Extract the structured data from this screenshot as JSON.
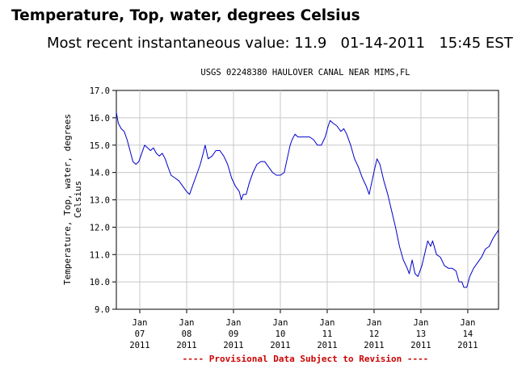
{
  "header": {
    "title": "Temperature, Top, water, degrees Celsius",
    "recent_label": "Most recent instantaneous value:",
    "recent_value": "11.9",
    "recent_date": "01-14-2011",
    "recent_time": "15:45 EST"
  },
  "chart_data": {
    "type": "line",
    "title": "USGS 02248380 HAULOVER CANAL NEAR MIMS,FL",
    "ylabel_lines": [
      "Temperature, Top, water, degrees",
      "Celsius"
    ],
    "footnote": "---- Provisional Data Subject to Revision ----",
    "ylim": [
      9.0,
      17.0
    ],
    "yticks": [
      "9.0",
      "10.0",
      "11.0",
      "12.0",
      "13.0",
      "14.0",
      "15.0",
      "16.0",
      "17.0"
    ],
    "xlim": [
      "2011-01-06T12:00",
      "2011-01-14T15:45"
    ],
    "xticks": [
      {
        "day": 7,
        "lines": [
          "Jan",
          "07",
          "2011"
        ]
      },
      {
        "day": 8,
        "lines": [
          "Jan",
          "08",
          "2011"
        ]
      },
      {
        "day": 9,
        "lines": [
          "Jan",
          "09",
          "2011"
        ]
      },
      {
        "day": 10,
        "lines": [
          "Jan",
          "10",
          "2011"
        ]
      },
      {
        "day": 11,
        "lines": [
          "Jan",
          "11",
          "2011"
        ]
      },
      {
        "day": 12,
        "lines": [
          "Jan",
          "12",
          "2011"
        ]
      },
      {
        "day": 13,
        "lines": [
          "Jan",
          "13",
          "2011"
        ]
      },
      {
        "day": 14,
        "lines": [
          "Jan",
          "14",
          "2011"
        ]
      }
    ],
    "grid": true,
    "colors": {
      "line": "#0000cc",
      "footnote": "#cc0000",
      "grid": "#c8c8c8"
    },
    "series": [
      {
        "points": [
          [
            "2011-01-06T12:00",
            16.2
          ],
          [
            "2011-01-06T13:00",
            15.8
          ],
          [
            "2011-01-06T14:30",
            15.6
          ],
          [
            "2011-01-06T16:00",
            15.5
          ],
          [
            "2011-01-06T17:30",
            15.2
          ],
          [
            "2011-01-06T19:00",
            14.8
          ],
          [
            "2011-01-06T20:30",
            14.4
          ],
          [
            "2011-01-06T22:00",
            14.3
          ],
          [
            "2011-01-06T23:30",
            14.4
          ],
          [
            "2011-01-07T01:00",
            14.7
          ],
          [
            "2011-01-07T02:30",
            15.0
          ],
          [
            "2011-01-07T04:00",
            14.9
          ],
          [
            "2011-01-07T05:30",
            14.8
          ],
          [
            "2011-01-07T07:00",
            14.9
          ],
          [
            "2011-01-07T08:30",
            14.7
          ],
          [
            "2011-01-07T10:00",
            14.6
          ],
          [
            "2011-01-07T11:30",
            14.7
          ],
          [
            "2011-01-07T13:00",
            14.5
          ],
          [
            "2011-01-07T14:30",
            14.2
          ],
          [
            "2011-01-07T16:00",
            13.9
          ],
          [
            "2011-01-07T18:00",
            13.8
          ],
          [
            "2011-01-07T20:00",
            13.7
          ],
          [
            "2011-01-07T22:00",
            13.5
          ],
          [
            "2011-01-08T00:00",
            13.3
          ],
          [
            "2011-01-08T01:30",
            13.2
          ],
          [
            "2011-01-08T03:00",
            13.5
          ],
          [
            "2011-01-08T05:00",
            13.9
          ],
          [
            "2011-01-08T07:00",
            14.3
          ],
          [
            "2011-01-08T08:30",
            14.7
          ],
          [
            "2011-01-08T09:30",
            15.0
          ],
          [
            "2011-01-08T11:00",
            14.5
          ],
          [
            "2011-01-08T13:00",
            14.6
          ],
          [
            "2011-01-08T15:00",
            14.8
          ],
          [
            "2011-01-08T17:00",
            14.8
          ],
          [
            "2011-01-08T19:00",
            14.6
          ],
          [
            "2011-01-08T21:00",
            14.3
          ],
          [
            "2011-01-08T23:00",
            13.8
          ],
          [
            "2011-01-09T01:00",
            13.5
          ],
          [
            "2011-01-09T03:00",
            13.3
          ],
          [
            "2011-01-09T04:00",
            13.0
          ],
          [
            "2011-01-09T05:00",
            13.2
          ],
          [
            "2011-01-09T06:30",
            13.2
          ],
          [
            "2011-01-09T08:00",
            13.6
          ],
          [
            "2011-01-09T10:00",
            14.0
          ],
          [
            "2011-01-09T12:00",
            14.3
          ],
          [
            "2011-01-09T14:00",
            14.4
          ],
          [
            "2011-01-09T16:00",
            14.4
          ],
          [
            "2011-01-09T18:00",
            14.2
          ],
          [
            "2011-01-09T20:00",
            14.0
          ],
          [
            "2011-01-09T22:00",
            13.9
          ],
          [
            "2011-01-10T00:00",
            13.9
          ],
          [
            "2011-01-10T02:00",
            14.0
          ],
          [
            "2011-01-10T03:30",
            14.5
          ],
          [
            "2011-01-10T05:00",
            15.0
          ],
          [
            "2011-01-10T06:00",
            15.2
          ],
          [
            "2011-01-10T07:30",
            15.4
          ],
          [
            "2011-01-10T09:00",
            15.3
          ],
          [
            "2011-01-10T11:00",
            15.3
          ],
          [
            "2011-01-10T13:00",
            15.3
          ],
          [
            "2011-01-10T15:00",
            15.3
          ],
          [
            "2011-01-10T17:00",
            15.2
          ],
          [
            "2011-01-10T19:00",
            15.0
          ],
          [
            "2011-01-10T21:00",
            15.0
          ],
          [
            "2011-01-10T23:00",
            15.3
          ],
          [
            "2011-01-11T00:30",
            15.7
          ],
          [
            "2011-01-11T01:30",
            15.9
          ],
          [
            "2011-01-11T03:00",
            15.8
          ],
          [
            "2011-01-11T05:00",
            15.7
          ],
          [
            "2011-01-11T07:00",
            15.5
          ],
          [
            "2011-01-11T08:30",
            15.6
          ],
          [
            "2011-01-11T10:00",
            15.4
          ],
          [
            "2011-01-11T12:00",
            15.0
          ],
          [
            "2011-01-11T14:00",
            14.5
          ],
          [
            "2011-01-11T16:00",
            14.2
          ],
          [
            "2011-01-11T18:00",
            13.8
          ],
          [
            "2011-01-11T20:00",
            13.5
          ],
          [
            "2011-01-11T21:30",
            13.2
          ],
          [
            "2011-01-11T23:00",
            13.7
          ],
          [
            "2011-01-12T00:30",
            14.2
          ],
          [
            "2011-01-12T01:30",
            14.5
          ],
          [
            "2011-01-12T03:00",
            14.3
          ],
          [
            "2011-01-12T05:00",
            13.7
          ],
          [
            "2011-01-12T07:00",
            13.2
          ],
          [
            "2011-01-12T09:00",
            12.6
          ],
          [
            "2011-01-12T11:00",
            12.0
          ],
          [
            "2011-01-12T13:00",
            11.3
          ],
          [
            "2011-01-12T15:00",
            10.8
          ],
          [
            "2011-01-12T17:00",
            10.5
          ],
          [
            "2011-01-12T18:00",
            10.3
          ],
          [
            "2011-01-12T19:30",
            10.8
          ],
          [
            "2011-01-12T21:00",
            10.3
          ],
          [
            "2011-01-12T22:30",
            10.2
          ],
          [
            "2011-01-13T00:30",
            10.6
          ],
          [
            "2011-01-13T02:30",
            11.2
          ],
          [
            "2011-01-13T03:30",
            11.5
          ],
          [
            "2011-01-13T05:00",
            11.3
          ],
          [
            "2011-01-13T06:00",
            11.5
          ],
          [
            "2011-01-13T08:00",
            11.0
          ],
          [
            "2011-01-13T10:00",
            10.9
          ],
          [
            "2011-01-13T12:00",
            10.6
          ],
          [
            "2011-01-13T14:00",
            10.5
          ],
          [
            "2011-01-13T16:00",
            10.5
          ],
          [
            "2011-01-13T18:00",
            10.4
          ],
          [
            "2011-01-13T19:30",
            10.0
          ],
          [
            "2011-01-13T21:00",
            10.0
          ],
          [
            "2011-01-13T22:00",
            9.8
          ],
          [
            "2011-01-13T23:30",
            9.8
          ],
          [
            "2011-01-14T01:00",
            10.2
          ],
          [
            "2011-01-14T03:00",
            10.5
          ],
          [
            "2011-01-14T05:00",
            10.7
          ],
          [
            "2011-01-14T07:00",
            10.9
          ],
          [
            "2011-01-14T09:00",
            11.2
          ],
          [
            "2011-01-14T11:00",
            11.3
          ],
          [
            "2011-01-14T13:00",
            11.6
          ],
          [
            "2011-01-14T15:45",
            11.9
          ]
        ]
      }
    ]
  }
}
